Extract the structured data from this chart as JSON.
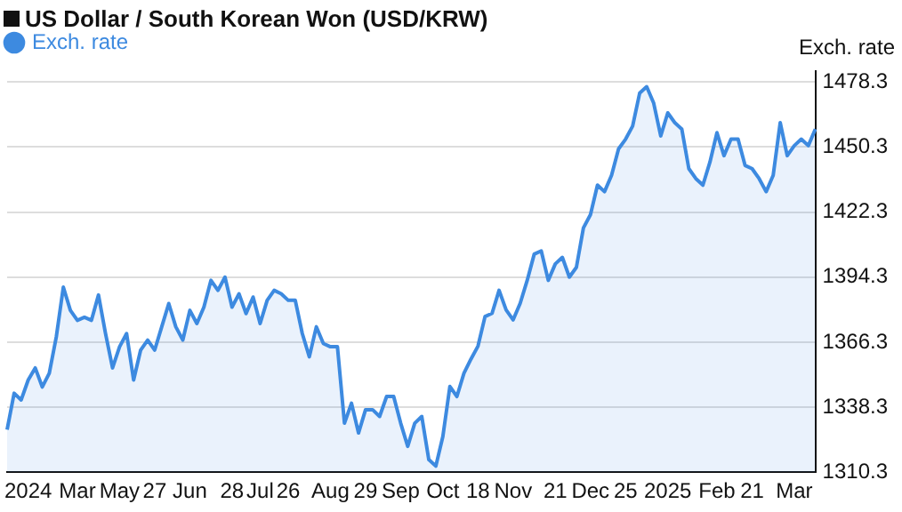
{
  "chart_data": {
    "type": "area",
    "title": "US Dollar / South Korean Won (USD/KRW)",
    "ylabel": "Exch. rate",
    "categories": [
      null,
      null,
      null,
      "2024",
      null,
      null,
      null,
      null,
      null,
      null,
      "Mar",
      null,
      null,
      null,
      null,
      null,
      "May",
      null,
      null,
      null,
      null,
      "27",
      null,
      null,
      null,
      null,
      "Jun",
      null,
      null,
      null,
      null,
      null,
      "28",
      null,
      null,
      null,
      "Jul",
      null,
      null,
      null,
      "26",
      null,
      null,
      null,
      null,
      null,
      "Aug",
      null,
      null,
      null,
      null,
      "29",
      null,
      null,
      null,
      null,
      "Sep",
      null,
      null,
      null,
      null,
      null,
      "Oct",
      null,
      null,
      null,
      null,
      "18",
      null,
      null,
      null,
      null,
      "Nov",
      null,
      null,
      null,
      null,
      null,
      "21",
      null,
      null,
      null,
      null,
      "Dec",
      null,
      null,
      null,
      null,
      "25",
      null,
      null,
      null,
      null,
      null,
      "2025",
      null,
      null,
      null,
      null,
      null,
      null,
      "Feb",
      null,
      null,
      null,
      null,
      "21",
      null,
      null,
      null,
      null,
      null,
      "Mar",
      null,
      null,
      null
    ],
    "series": [
      {
        "name": "Exch. rate",
        "color": "#3d8ae0",
        "values": [
          1328.6,
          1344.3,
          1341.4,
          1350,
          1355.2,
          1347,
          1352.9,
          1368.6,
          1390,
          1380,
          1375.7,
          1377,
          1375.7,
          1386.6,
          1370,
          1355.2,
          1364.3,
          1370,
          1350,
          1362.9,
          1367.2,
          1362.9,
          1372.9,
          1382.9,
          1372.9,
          1367.2,
          1380,
          1374.3,
          1381.4,
          1392.9,
          1388.6,
          1394.3,
          1381.4,
          1387.1,
          1378.6,
          1385.7,
          1374.3,
          1384.3,
          1388.6,
          1387.1,
          1384.3,
          1384.3,
          1370,
          1360,
          1372.9,
          1365.7,
          1364.3,
          1364.3,
          1331.4,
          1340,
          1327.2,
          1337.2,
          1337.2,
          1334.3,
          1342.9,
          1342.9,
          1331.4,
          1321.4,
          1331.4,
          1334.3,
          1315.7,
          1312.9,
          1325.7,
          1347.2,
          1342.9,
          1352.9,
          1359,
          1364.6,
          1377.3,
          1378.7,
          1388.6,
          1380.2,
          1375.9,
          1383,
          1392.9,
          1404.2,
          1405.6,
          1392.9,
          1400,
          1402.8,
          1394.3,
          1398.5,
          1415.5,
          1421.2,
          1433.9,
          1431.1,
          1438.1,
          1449.5,
          1453.7,
          1459.3,
          1473.5,
          1476.3,
          1469.2,
          1455.1,
          1465,
          1460.8,
          1458,
          1441,
          1436.7,
          1433.9,
          1443.8,
          1456.5,
          1446.6,
          1453.7,
          1453.7,
          1442.4,
          1441,
          1436.7,
          1431.1,
          1438.1,
          1460.8,
          1446.6,
          1450.9,
          1453.7,
          1450.9,
          1458
        ]
      }
    ],
    "ylim": [
      1310.3,
      1483
    ],
    "yticks": [
      1310.3,
      1338.3,
      1366.3,
      1394.3,
      1422.3,
      1450.3,
      1478.3
    ],
    "grid": "y",
    "legend": "top left"
  }
}
